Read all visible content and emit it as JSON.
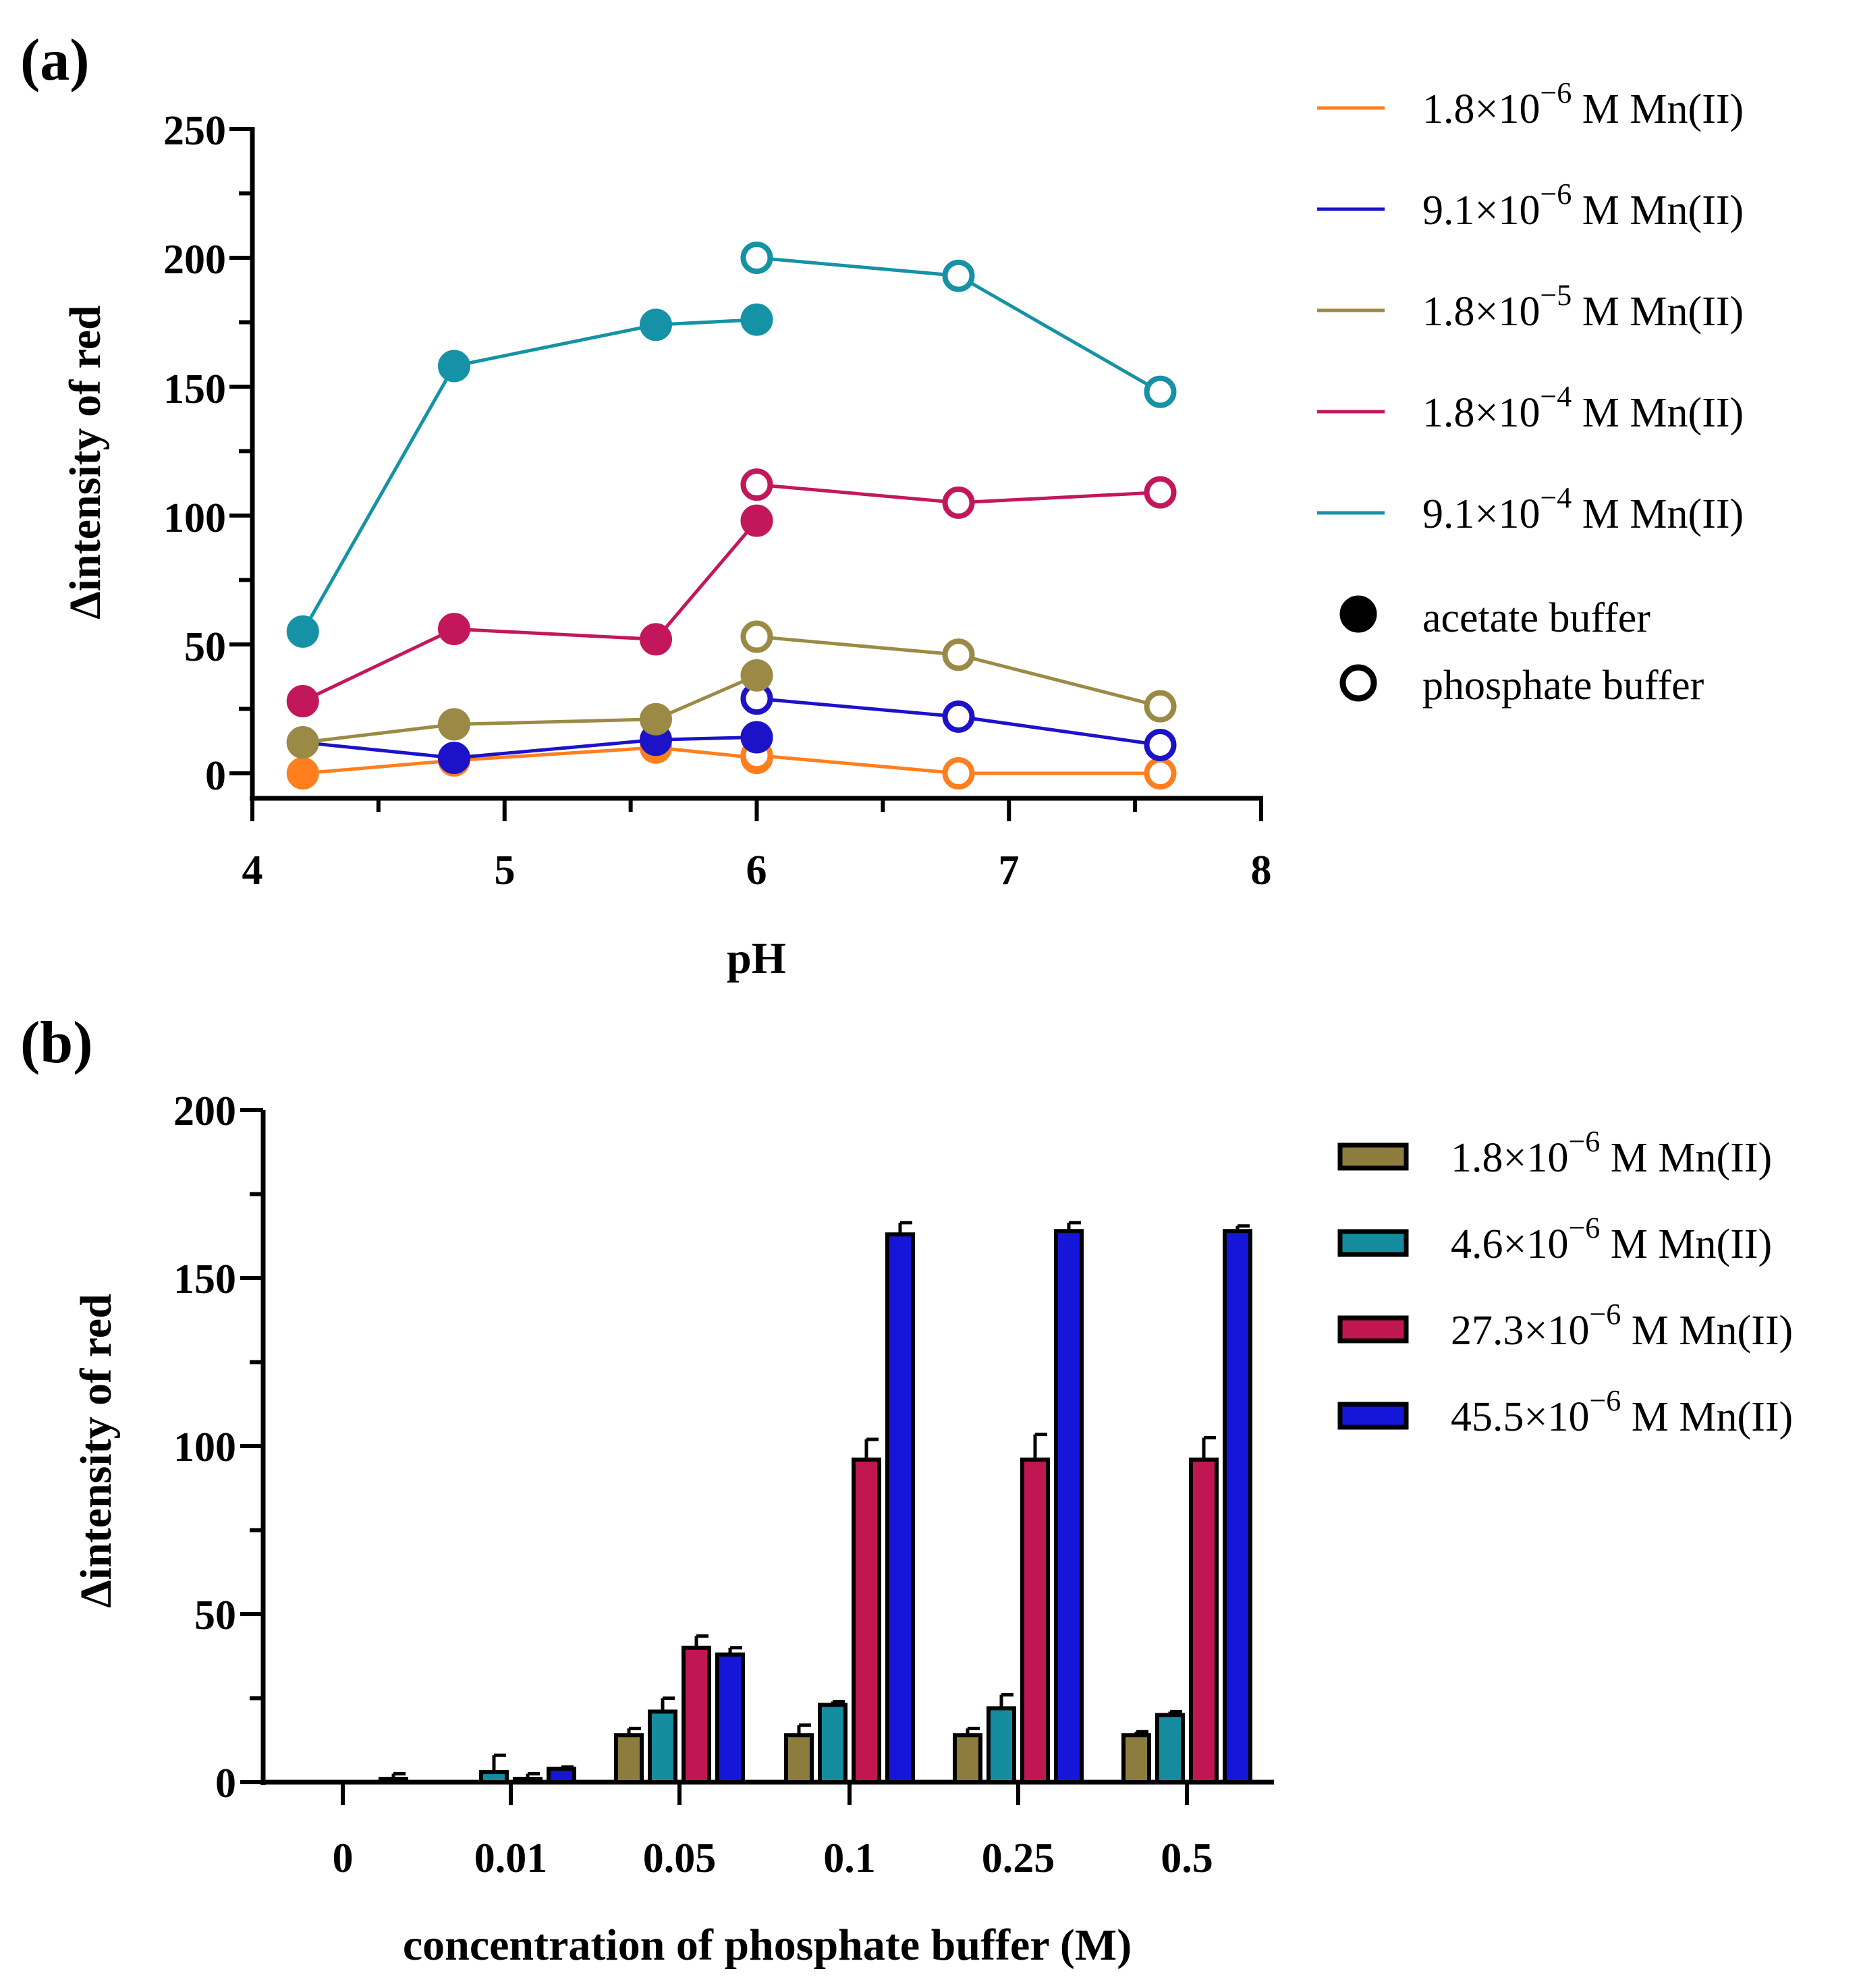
{
  "chart_data": [
    {
      "panel": "(a)",
      "type": "line",
      "xlabel": "pH",
      "ylabel": "Δintensity of red",
      "xlim": [
        4,
        8
      ],
      "ylim": [
        0,
        250
      ],
      "xticks": [
        "4",
        "5",
        "6",
        "7",
        "8"
      ],
      "yticks": [
        "0",
        "50",
        "100",
        "150",
        "200",
        "250"
      ],
      "series": [
        {
          "name": "1.8×10^−6 M Mn(II)",
          "mant": "1.8×10",
          "exp": "−6",
          "suffix": " M Mn(II)",
          "color": "#ff7f1e",
          "acetate": {
            "x": [
              4.2,
              4.8,
              5.6,
              6.0
            ],
            "y": [
              0,
              5,
              10,
              6
            ]
          },
          "phosphate": {
            "x": [
              6.0,
              6.8,
              7.6
            ],
            "y": [
              7,
              0,
              0
            ]
          }
        },
        {
          "name": "9.1×10^−6 M Mn(II)",
          "mant": "9.1×10",
          "exp": "−6",
          "suffix": " M Mn(II)",
          "color": "#1c12c8",
          "acetate": {
            "x": [
              4.2,
              4.8,
              5.6,
              6.0
            ],
            "y": [
              12,
              6,
              13,
              14
            ]
          },
          "phosphate": {
            "x": [
              6.0,
              6.8,
              7.6
            ],
            "y": [
              29,
              22,
              11
            ]
          }
        },
        {
          "name": "1.8×10^−5 M Mn(II)",
          "mant": "1.8×10",
          "exp": "−5",
          "suffix": " M Mn(II)",
          "color": "#9b8a45",
          "acetate": {
            "x": [
              4.2,
              4.8,
              5.6,
              6.0
            ],
            "y": [
              12,
              19,
              21,
              38
            ]
          },
          "phosphate": {
            "x": [
              6.0,
              6.8,
              7.6
            ],
            "y": [
              53,
              46,
              26
            ]
          }
        },
        {
          "name": "1.8×10^−4 M Mn(II)",
          "mant": "1.8×10",
          "exp": "−4",
          "suffix": " M Mn(II)",
          "color": "#c2185b",
          "acetate": {
            "x": [
              4.2,
              4.8,
              5.6,
              6.0
            ],
            "y": [
              28,
              56,
              52,
              98
            ]
          },
          "phosphate": {
            "x": [
              6.0,
              6.8,
              7.6
            ],
            "y": [
              112,
              105,
              109
            ]
          }
        },
        {
          "name": "9.1×10^−4 M Mn(II)",
          "mant": "9.1×10",
          "exp": "−4",
          "suffix": " M Mn(II)",
          "color": "#1592a5",
          "acetate": {
            "x": [
              4.2,
              4.8,
              5.6,
              6.0
            ],
            "y": [
              55,
              158,
              174,
              176
            ]
          },
          "phosphate": {
            "x": [
              6.0,
              6.8,
              7.6
            ],
            "y": [
              200,
              193,
              148
            ]
          }
        }
      ],
      "marker_legend": [
        {
          "label": "acetate buffer",
          "filled": true
        },
        {
          "label": "phosphate buffer",
          "filled": false
        }
      ]
    },
    {
      "panel": "(b)",
      "type": "bar",
      "xlabel": "concentration of phosphate buffer (M)",
      "ylabel": "Δintensity of red",
      "ylim": [
        0,
        200
      ],
      "yticks": [
        "0",
        "50",
        "100",
        "150",
        "200"
      ],
      "categories": [
        "0",
        "0.01",
        "0.05",
        "0.1",
        "0.25",
        "0.5"
      ],
      "series": [
        {
          "name": "1.8×10^−6 M Mn(II)",
          "mant": "1.8×10",
          "exp": "−6",
          "suffix": " M Mn(II)",
          "color": "#8c7c3e",
          "values": [
            0,
            0,
            14,
            14,
            14,
            14
          ],
          "errors": [
            0,
            0,
            2,
            3,
            2,
            1
          ]
        },
        {
          "name": "4.6×10^−6 M Mn(II)",
          "mant": "4.6×10",
          "exp": "−6",
          "suffix": " M Mn(II)",
          "color": "#148c9e",
          "values": [
            0,
            3,
            21,
            23,
            22,
            20
          ],
          "errors": [
            0,
            5,
            4,
            1,
            4,
            1
          ]
        },
        {
          "name": "27.3×10^−6 M Mn(II)",
          "mant": "27.3×10",
          "exp": "−6",
          "suffix": " M Mn(II)",
          "color": "#c01652",
          "values": [
            0,
            1,
            40,
            96,
            96,
            96
          ],
          "errors": [
            0,
            1.5,
            3.5,
            6,
            7.5,
            6.5
          ]
        },
        {
          "name": "45.5×10^−6 M Mn(II)",
          "mant": "45.5×10",
          "exp": "−6",
          "suffix": " M Mn(II)",
          "color": "#1616d8",
          "values": [
            1,
            4,
            38,
            163,
            164,
            164
          ],
          "errors": [
            1.5,
            0.5,
            2,
            3.5,
            2.5,
            1.5
          ]
        }
      ]
    }
  ]
}
